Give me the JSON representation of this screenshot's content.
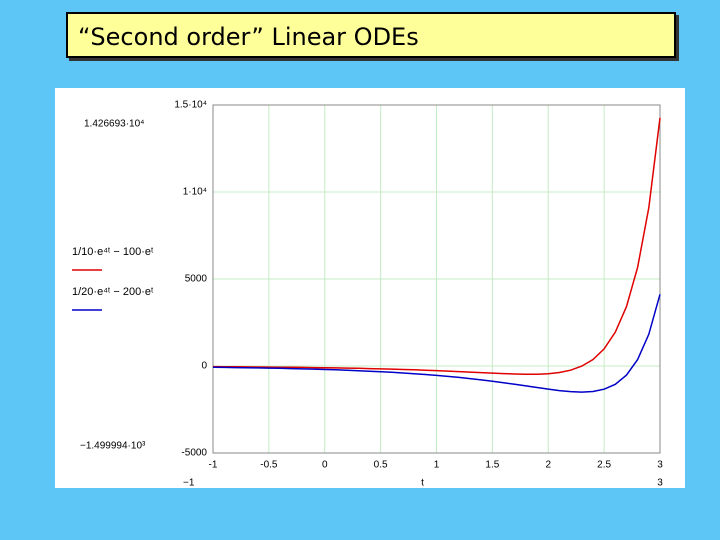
{
  "title": "“Second order” Linear ODEs",
  "chart_data": {
    "type": "line",
    "x": [
      -1,
      -0.9,
      -0.8,
      -0.7,
      -0.6,
      -0.5,
      -0.4,
      -0.3,
      -0.2,
      -0.1,
      0,
      0.1,
      0.2,
      0.3,
      0.4,
      0.5,
      0.6,
      0.7,
      0.8,
      0.9,
      1,
      1.1,
      1.2,
      1.3,
      1.4,
      1.5,
      1.6,
      1.7,
      1.8,
      1.9,
      2,
      2.1,
      2.2,
      2.3,
      2.4,
      2.5,
      2.6,
      2.7,
      2.8,
      2.9,
      3
    ],
    "series": [
      {
        "name": "1/10·e⁴ᵗ − 100·eᵗ",
        "color": "#e00000",
        "values": [
          -37,
          -41,
          -45,
          -50,
          -55,
          -61,
          -67,
          -74,
          -82,
          -90,
          -100,
          -110,
          -122,
          -135,
          -149,
          -164,
          -181,
          -200,
          -220,
          -242,
          -266,
          -292,
          -320,
          -349,
          -379,
          -408,
          -435,
          -458,
          -471,
          -469,
          -441,
          -372,
          -239,
          -8,
          374,
          984,
          1940,
          3414,
          5669,
          9092,
          14267
        ]
      },
      {
        "name": "1/20·e⁴ᵗ − 200·eᵗ",
        "color": "#0000c8",
        "values": [
          -74,
          -81,
          -90,
          -99,
          -110,
          -121,
          -134,
          -148,
          -164,
          -181,
          -200,
          -221,
          -244,
          -270,
          -298,
          -329,
          -364,
          -402,
          -444,
          -490,
          -541,
          -597,
          -658,
          -725,
          -798,
          -876,
          -961,
          -1050,
          -1143,
          -1237,
          -1329,
          -1411,
          -1473,
          -1500,
          -1466,
          -1335,
          -1050,
          -525,
          368,
          1820,
          4121
        ]
      }
    ],
    "xlim": [
      -1,
      3
    ],
    "xticks": [
      -1,
      -0.5,
      0,
      0.5,
      1,
      1.5,
      2,
      2.5,
      3
    ],
    "ylim": [
      -5000,
      15000
    ],
    "yticks": [
      -5000,
      0,
      5000,
      {
        "value": 10000,
        "label": "1·10⁴"
      },
      {
        "value": 15000,
        "label": "1.5·10⁴"
      }
    ],
    "grid": true,
    "xlabel": "t",
    "ymax_label": "1.426693·10⁴",
    "ymin_label": "−1.499994·10³",
    "xmin_label": "−1",
    "xmax_label": "3"
  }
}
